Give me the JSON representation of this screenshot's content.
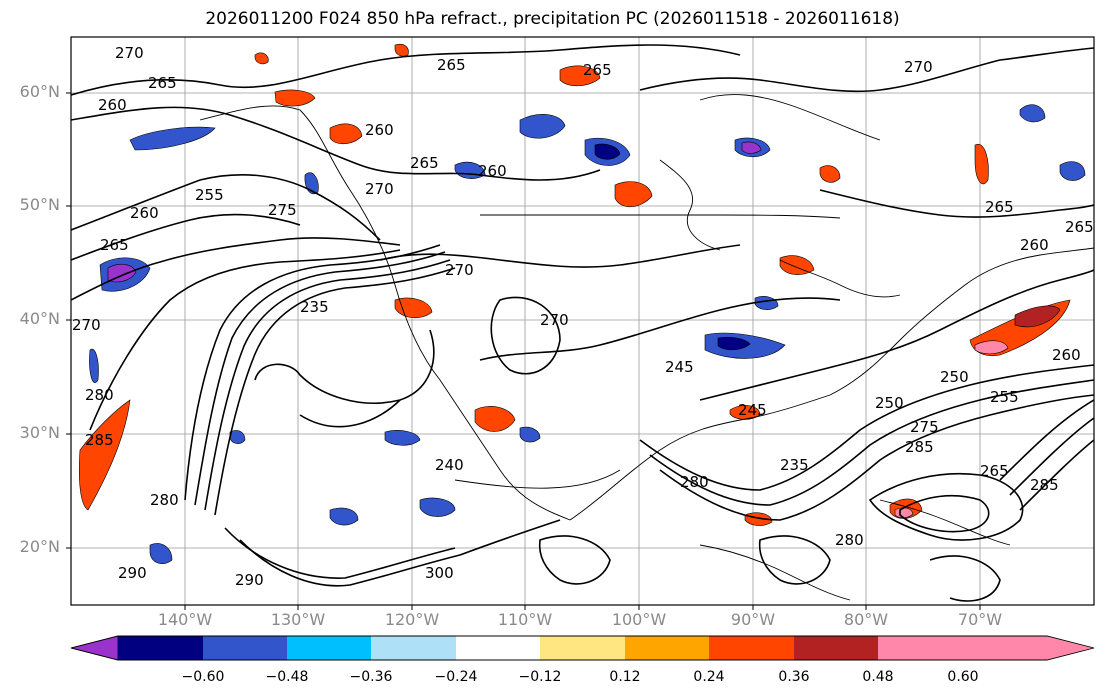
{
  "title": "2026011200 F024 850 hPa refract., precipitation PC (2026011518 - 2026011618)",
  "latitude_labels": [
    "60°N",
    "50°N",
    "40°N",
    "30°N",
    "20°N"
  ],
  "longitude_labels": [
    "140°W",
    "130°W",
    "120°W",
    "110°W",
    "100°W",
    "90°W",
    "80°W",
    "70°W"
  ],
  "colorbar": {
    "ticks": [
      "−0.60",
      "−0.48",
      "−0.36",
      "−0.24",
      "−0.12",
      "0.12",
      "0.24",
      "0.36",
      "0.48",
      "0.60"
    ],
    "colors": [
      "#9933cc",
      "#000080",
      "#3355cc",
      "#00bfff",
      "#aee0f8",
      "#ffffff",
      "#ffe680",
      "#ffa500",
      "#ff4500",
      "#b22222",
      "#ff88aa"
    ]
  },
  "contour_labels": [
    "270",
    "265",
    "260",
    "265",
    "260",
    "255",
    "260",
    "265",
    "275",
    "270",
    "265",
    "260",
    "265",
    "270",
    "265",
    "260",
    "265",
    "270",
    "235",
    "240",
    "245",
    "250",
    "260",
    "255",
    "250",
    "245",
    "275",
    "285",
    "235",
    "280",
    "270",
    "265",
    "280",
    "285",
    "290",
    "280",
    "290",
    "300",
    "270",
    "280",
    "285"
  ]
}
